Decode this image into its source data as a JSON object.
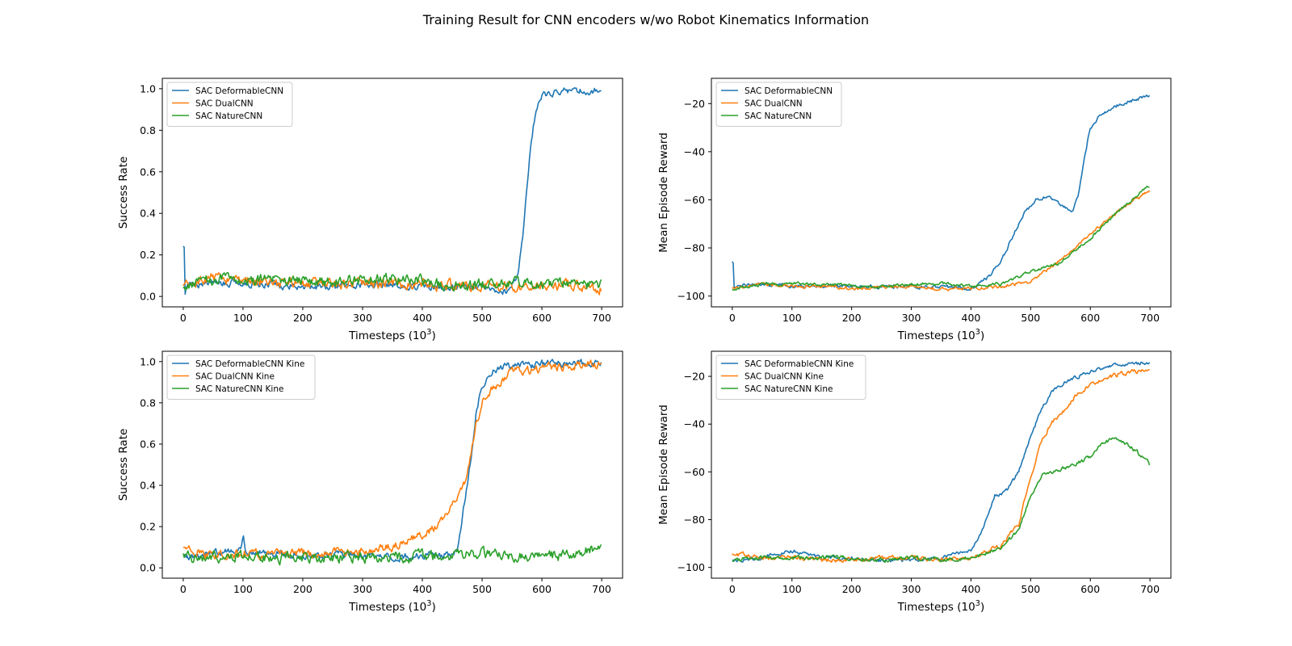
{
  "figure": {
    "title": "Training Result for CNN encoders w/wo Robot Kinematics Information"
  },
  "colors": {
    "blue": "#1f77b4",
    "orange": "#ff7f0e",
    "green": "#2ca02c"
  },
  "chart_data": [
    {
      "type": "line",
      "xlabel": "Timesteps (10^3)",
      "xlabel_base": "Timesteps (10",
      "xlabel_sup": "3",
      "xlabel_tail": ")",
      "ylabel": "Success Rate",
      "xlim": [
        -35,
        735
      ],
      "ylim": [
        -0.05,
        1.05
      ],
      "xticks": [
        0,
        100,
        200,
        300,
        400,
        500,
        600,
        700
      ],
      "yticks": [
        0.0,
        0.2,
        0.4,
        0.6,
        0.8,
        1.0
      ],
      "ytick_labels": [
        "0.0",
        "0.2",
        "0.4",
        "0.6",
        "0.8",
        "1.0"
      ],
      "grid": false,
      "legend": "upper left",
      "series": [
        {
          "name": "SAC DeformableCNN",
          "color": "#1f77b4",
          "noise": 0.02,
          "x": [
            0,
            2,
            3,
            6,
            20,
            50,
            100,
            150,
            200,
            250,
            300,
            350,
            400,
            450,
            500,
            540,
            560,
            570,
            580,
            590,
            600,
            620,
            650,
            680,
            700
          ],
          "y": [
            0.25,
            0.25,
            0.03,
            0.05,
            0.06,
            0.07,
            0.06,
            0.06,
            0.05,
            0.05,
            0.06,
            0.06,
            0.05,
            0.04,
            0.04,
            0.03,
            0.1,
            0.35,
            0.7,
            0.9,
            0.96,
            0.98,
            0.99,
            0.99,
            0.99
          ]
        },
        {
          "name": "SAC DualCNN",
          "color": "#ff7f0e",
          "noise": 0.03,
          "x": [
            0,
            50,
            100,
            150,
            200,
            250,
            300,
            350,
            400,
            450,
            500,
            550,
            600,
            650,
            700
          ],
          "y": [
            0.04,
            0.09,
            0.08,
            0.06,
            0.07,
            0.06,
            0.06,
            0.07,
            0.06,
            0.05,
            0.04,
            0.05,
            0.05,
            0.05,
            0.04
          ]
        },
        {
          "name": "SAC NatureCNN",
          "color": "#2ca02c",
          "noise": 0.03,
          "x": [
            0,
            50,
            100,
            150,
            200,
            250,
            300,
            350,
            400,
            450,
            500,
            550,
            600,
            650,
            700
          ],
          "y": [
            0.05,
            0.08,
            0.08,
            0.08,
            0.07,
            0.07,
            0.08,
            0.09,
            0.07,
            0.05,
            0.06,
            0.06,
            0.06,
            0.06,
            0.05
          ]
        }
      ]
    },
    {
      "type": "line",
      "xlabel": "Timesteps (10^3)",
      "xlabel_base": "Timesteps (10",
      "xlabel_sup": "3",
      "xlabel_tail": ")",
      "ylabel": "Mean Episode Reward",
      "xlim": [
        -35,
        735
      ],
      "ylim": [
        -104.5,
        -9.5
      ],
      "xticks": [
        0,
        100,
        200,
        300,
        400,
        500,
        600,
        700
      ],
      "yticks": [
        -100,
        -80,
        -60,
        -40,
        -20
      ],
      "ytick_labels": [
        "−100",
        "−80",
        "−60",
        "−40",
        "−20"
      ],
      "grid": false,
      "legend": "upper left",
      "series": [
        {
          "name": "SAC DeformableCNN",
          "color": "#1f77b4",
          "noise": 0.9,
          "x": [
            0,
            2,
            3,
            6,
            50,
            100,
            150,
            200,
            250,
            300,
            350,
            400,
            430,
            450,
            470,
            490,
            510,
            530,
            550,
            570,
            580,
            590,
            600,
            620,
            650,
            680,
            700
          ],
          "y": [
            -86,
            -86,
            -97,
            -96,
            -95,
            -96,
            -96,
            -96,
            -96,
            -96,
            -96,
            -97,
            -92,
            -86,
            -75,
            -65,
            -60,
            -58,
            -62,
            -65,
            -58,
            -42,
            -30,
            -24,
            -20,
            -18,
            -17
          ]
        },
        {
          "name": "SAC DualCNN",
          "color": "#ff7f0e",
          "noise": 0.8,
          "x": [
            0,
            50,
            100,
            150,
            200,
            250,
            300,
            350,
            400,
            450,
            500,
            550,
            600,
            650,
            700
          ],
          "y": [
            -97,
            -95,
            -96,
            -96,
            -97,
            -96,
            -96,
            -97,
            -97,
            -96,
            -94,
            -85,
            -74,
            -64,
            -56
          ]
        },
        {
          "name": "SAC NatureCNN",
          "color": "#2ca02c",
          "noise": 0.8,
          "x": [
            0,
            50,
            100,
            150,
            200,
            250,
            300,
            350,
            400,
            450,
            500,
            550,
            600,
            650,
            700
          ],
          "y": [
            -97,
            -95,
            -95,
            -95,
            -96,
            -96,
            -95,
            -95,
            -96,
            -95,
            -90,
            -86,
            -76,
            -64,
            -54
          ]
        }
      ]
    },
    {
      "type": "line",
      "xlabel": "Timesteps (10^3)",
      "xlabel_base": "Timesteps (10",
      "xlabel_sup": "3",
      "xlabel_tail": ")",
      "ylabel": "Success Rate",
      "xlim": [
        -35,
        735
      ],
      "ylim": [
        -0.05,
        1.05
      ],
      "xticks": [
        0,
        100,
        200,
        300,
        400,
        500,
        600,
        700
      ],
      "yticks": [
        0.0,
        0.2,
        0.4,
        0.6,
        0.8,
        1.0
      ],
      "ytick_labels": [
        "0.0",
        "0.2",
        "0.4",
        "0.6",
        "0.8",
        "1.0"
      ],
      "grid": false,
      "legend": "upper left",
      "series": [
        {
          "name": "SAC DeformableCNN Kine",
          "color": "#1f77b4",
          "noise": 0.02,
          "x": [
            0,
            50,
            95,
            100,
            105,
            150,
            200,
            250,
            300,
            350,
            400,
            450,
            460,
            470,
            480,
            490,
            500,
            520,
            550,
            600,
            650,
            700
          ],
          "y": [
            0.05,
            0.07,
            0.08,
            0.17,
            0.08,
            0.07,
            0.06,
            0.06,
            0.06,
            0.05,
            0.06,
            0.06,
            0.1,
            0.3,
            0.5,
            0.75,
            0.88,
            0.96,
            0.98,
            0.99,
            0.99,
            0.99
          ]
        },
        {
          "name": "SAC DualCNN Kine",
          "color": "#ff7f0e",
          "noise": 0.025,
          "x": [
            0,
            50,
            100,
            150,
            200,
            250,
            300,
            350,
            400,
            430,
            450,
            470,
            480,
            490,
            500,
            520,
            550,
            600,
            650,
            700
          ],
          "y": [
            0.1,
            0.06,
            0.07,
            0.06,
            0.07,
            0.07,
            0.08,
            0.1,
            0.16,
            0.22,
            0.3,
            0.4,
            0.55,
            0.7,
            0.8,
            0.88,
            0.95,
            0.97,
            0.98,
            0.99
          ]
        },
        {
          "name": "SAC NatureCNN Kine",
          "color": "#2ca02c",
          "noise": 0.03,
          "x": [
            0,
            50,
            100,
            150,
            200,
            250,
            300,
            350,
            400,
            450,
            500,
            550,
            600,
            650,
            690,
            700
          ],
          "y": [
            0.05,
            0.05,
            0.06,
            0.05,
            0.05,
            0.05,
            0.05,
            0.05,
            0.06,
            0.06,
            0.07,
            0.06,
            0.06,
            0.06,
            0.1,
            0.09
          ]
        }
      ]
    },
    {
      "type": "line",
      "xlabel": "Timesteps (10^3)",
      "xlabel_base": "Timesteps (10",
      "xlabel_sup": "3",
      "xlabel_tail": ")",
      "ylabel": "Mean Episode Reward",
      "xlim": [
        -35,
        735
      ],
      "ylim": [
        -104.5,
        -9.5
      ],
      "xticks": [
        0,
        100,
        200,
        300,
        400,
        500,
        600,
        700
      ],
      "yticks": [
        -100,
        -80,
        -60,
        -40,
        -20
      ],
      "ytick_labels": [
        "−100",
        "−80",
        "−60",
        "−40",
        "−20"
      ],
      "grid": false,
      "legend": "upper left",
      "series": [
        {
          "name": "SAC DeformableCNN Kine",
          "color": "#1f77b4",
          "noise": 0.9,
          "x": [
            0,
            50,
            100,
            150,
            200,
            250,
            300,
            350,
            400,
            420,
            440,
            460,
            480,
            500,
            520,
            540,
            560,
            580,
            600,
            650,
            700
          ],
          "y": [
            -97,
            -96,
            -93,
            -96,
            -96,
            -97,
            -97,
            -96,
            -93,
            -84,
            -70,
            -68,
            -60,
            -45,
            -33,
            -25,
            -22,
            -20,
            -18,
            -15,
            -14
          ]
        },
        {
          "name": "SAC DualCNN Kine",
          "color": "#ff7f0e",
          "noise": 1.1,
          "x": [
            0,
            50,
            100,
            150,
            200,
            250,
            300,
            350,
            400,
            450,
            480,
            500,
            520,
            540,
            560,
            580,
            600,
            650,
            700
          ],
          "y": [
            -94,
            -96,
            -96,
            -97,
            -97,
            -96,
            -96,
            -97,
            -96,
            -91,
            -82,
            -62,
            -46,
            -38,
            -33,
            -27,
            -23,
            -19,
            -17
          ]
        },
        {
          "name": "SAC NatureCNN Kine",
          "color": "#2ca02c",
          "noise": 1.0,
          "x": [
            0,
            50,
            100,
            150,
            200,
            250,
            300,
            350,
            400,
            450,
            480,
            500,
            520,
            550,
            580,
            600,
            620,
            640,
            660,
            680,
            700
          ],
          "y": [
            -97,
            -96,
            -96,
            -96,
            -96,
            -97,
            -96,
            -97,
            -96,
            -92,
            -84,
            -70,
            -62,
            -59,
            -56,
            -54,
            -48,
            -46,
            -48,
            -52,
            -57
          ]
        }
      ]
    }
  ]
}
